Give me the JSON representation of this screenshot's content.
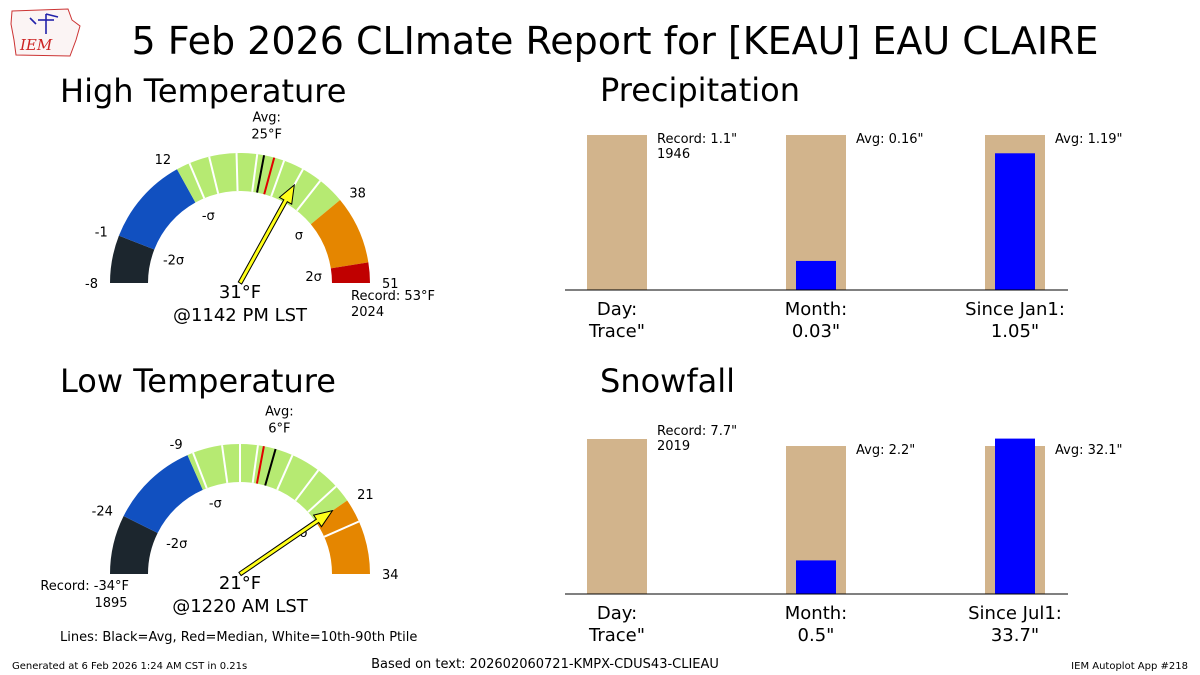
{
  "page_title": "5 Feb 2026 CLImate Report for [KEAU] EAU CLAIRE",
  "logo_text": "IEM",
  "footer": {
    "generated": "Generated at 6 Feb 2026 1:24 AM CST in 0.21s",
    "based_on": "Based on text: 202602060721-KMPX-CDUS43-CLIEAU",
    "app": "IEM Autoplot App #218"
  },
  "legend_note": "Lines: Black=Avg, Red=Median, White=10th-90th Ptile",
  "colors": {
    "sigma_minus_far": "#1c262e",
    "sigma_minus": "#1150c0",
    "normal_band": "#b6ea72",
    "sigma_plus": "#e58600",
    "sigma_plus_far": "#c00000",
    "needle": "#ffff1a",
    "bar_normal": "#d2b48c",
    "bar_observed": "#0000ff"
  },
  "chart_data": [
    {
      "type": "gauge",
      "title": "High Temperature",
      "range": [
        -8,
        51
      ],
      "tick_labels": [
        "-8",
        "-1",
        "12",
        "38",
        "51"
      ],
      "band_edges": [
        -8,
        -1,
        12,
        38,
        48,
        51
      ],
      "sigma_labels": [
        "-2σ",
        "-σ",
        "σ",
        "2σ"
      ],
      "sigma_values": [
        -1,
        12,
        38,
        48
      ],
      "avg_value": 25,
      "avg_label": [
        "Avg:",
        "25°F"
      ],
      "median_value": 26.5,
      "percentile_lines": [
        14,
        17,
        21,
        24,
        28,
        31,
        34
      ],
      "observed_value": 31,
      "observed_label": "31°F",
      "observed_time": "@1142 PM LST",
      "record_side": "high",
      "record_label": [
        "Record: 53°F",
        "2024"
      ]
    },
    {
      "type": "gauge",
      "title": "Low Temperature",
      "range": [
        -34,
        34
      ],
      "tick_labels": [
        "-24",
        "-9",
        "21",
        "34"
      ],
      "band_edges": [
        -34,
        -24,
        -9,
        21,
        34
      ],
      "sigma_labels": [
        "-2σ",
        "-σ",
        "σ"
      ],
      "sigma_values": [
        -24,
        -9,
        21
      ],
      "avg_value": 6,
      "avg_label": [
        "Avg:",
        "6°F"
      ],
      "median_value": 4,
      "percentile_lines": [
        -8,
        -3,
        0,
        3,
        9,
        14,
        18,
        25
      ],
      "observed_value": 21,
      "observed_label": "21°F",
      "observed_time": "@1220 AM LST",
      "record_side": "low",
      "record_label": [
        "Record: -34°F",
        "1895"
      ]
    },
    {
      "type": "bar",
      "title": "Precipitation",
      "categories": [
        "Day:",
        "Month:",
        "Since Jan1:"
      ],
      "observed_labels": [
        "Trace\"",
        "0.03\"",
        "1.05\""
      ],
      "observed_fraction": [
        0,
        0.1875,
        0.882
      ],
      "annotations": [
        [
          "Record: 1.1\"",
          "1946"
        ],
        [
          "Avg: 0.16\""
        ],
        [
          "Avg: 1.19\""
        ]
      ]
    },
    {
      "type": "bar",
      "title": "Snowfall",
      "categories": [
        "Day:",
        "Month:",
        "Since Jul1:"
      ],
      "observed_labels": [
        "Trace\"",
        "0.5\"",
        "33.7\""
      ],
      "observed_fraction": [
        0,
        0.227,
        1.05
      ],
      "annotations": [
        [
          "Record: 7.7\"",
          "2019"
        ],
        [
          "Avg: 2.2\""
        ],
        [
          "Avg: 32.1\""
        ]
      ]
    }
  ]
}
